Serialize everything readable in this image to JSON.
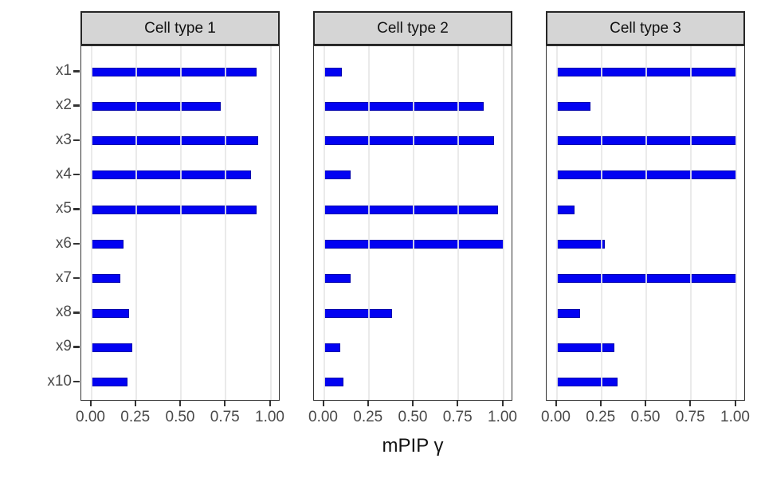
{
  "chart_data": {
    "type": "bar",
    "orientation": "horizontal",
    "title": "",
    "xlabel": "mPIP γ",
    "ylabel": "",
    "categories": [
      "x1",
      "x2",
      "x3",
      "x4",
      "x5",
      "x6",
      "x7",
      "x8",
      "x9",
      "x10"
    ],
    "facets": [
      {
        "label": "Cell type 1",
        "values": [
          0.92,
          0.72,
          0.93,
          0.89,
          0.92,
          0.18,
          0.16,
          0.21,
          0.23,
          0.2
        ]
      },
      {
        "label": "Cell type 2",
        "values": [
          0.1,
          0.89,
          0.95,
          0.15,
          0.97,
          1.0,
          0.15,
          0.38,
          0.09,
          0.11
        ]
      },
      {
        "label": "Cell type 3",
        "values": [
          1.0,
          0.19,
          1.0,
          1.0,
          0.1,
          0.27,
          1.0,
          0.13,
          0.32,
          0.34
        ]
      }
    ],
    "x_ticks": [
      "0.00",
      "0.25",
      "0.50",
      "0.75",
      "1.00"
    ],
    "x_tick_values": [
      0,
      0.25,
      0.5,
      0.75,
      1.0
    ],
    "xlim": [
      0,
      1
    ],
    "grid": "major-x-only, drawn above bars",
    "legend": "none",
    "colors": {
      "bar_fill": "#0202f2",
      "bar_edge": "#0000ad",
      "strip_bg": "#d5d5d5",
      "strip_border": "#262626",
      "panel_border": "#333333",
      "gridline": "#e7e7e7",
      "axis_text": "#4a4a4a",
      "title_text": "#111111"
    }
  }
}
